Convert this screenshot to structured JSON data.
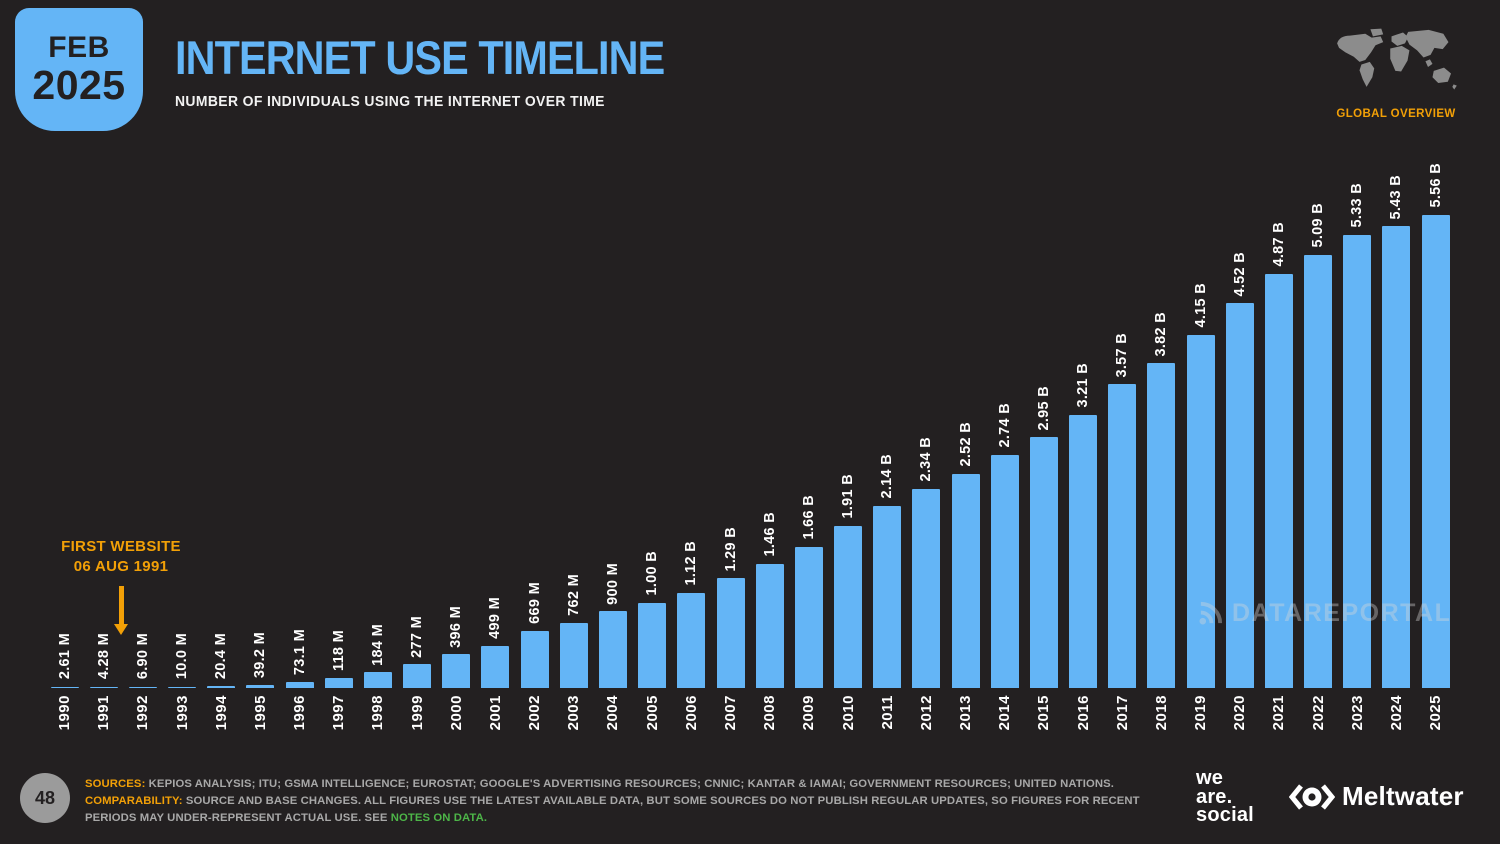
{
  "header": {
    "badge_month": "FEB",
    "badge_year": "2025",
    "title": "INTERNET USE TIMELINE",
    "subtitle": "NUMBER OF INDIVIDUALS USING THE INTERNET OVER TIME",
    "region_label": "GLOBAL OVERVIEW"
  },
  "chart_data": {
    "type": "bar",
    "title": "INTERNET USE TIMELINE",
    "subtitle": "NUMBER OF INDIVIDUALS USING THE INTERNET OVER TIME",
    "categories": [
      "1990",
      "1991",
      "1992",
      "1993",
      "1994",
      "1995",
      "1996",
      "1997",
      "1998",
      "1999",
      "2000",
      "2001",
      "2002",
      "2003",
      "2004",
      "2005",
      "2006",
      "2007",
      "2008",
      "2009",
      "2010",
      "2011",
      "2012",
      "2013",
      "2014",
      "2015",
      "2016",
      "2017",
      "2018",
      "2019",
      "2020",
      "2021",
      "2022",
      "2023",
      "2024",
      "2025"
    ],
    "value_labels": [
      "2.61 M",
      "4.28 M",
      "6.90 M",
      "10.0 M",
      "20.4 M",
      "39.2 M",
      "73.1 M",
      "118 M",
      "184 M",
      "277 M",
      "396 M",
      "499 M",
      "669 M",
      "762 M",
      "900 M",
      "1.00 B",
      "1.12 B",
      "1.29 B",
      "1.46 B",
      "1.66 B",
      "1.91 B",
      "2.14 B",
      "2.34 B",
      "2.52 B",
      "2.74 B",
      "2.95 B",
      "3.21 B",
      "3.57 B",
      "3.82 B",
      "4.15 B",
      "4.52 B",
      "4.87 B",
      "5.09 B",
      "5.33 B",
      "5.43 B",
      "5.56 B"
    ],
    "values_billions": [
      0.00261,
      0.00428,
      0.0069,
      0.01,
      0.0204,
      0.0392,
      0.0731,
      0.118,
      0.184,
      0.277,
      0.396,
      0.499,
      0.669,
      0.762,
      0.9,
      1.0,
      1.12,
      1.29,
      1.46,
      1.66,
      1.91,
      2.14,
      2.34,
      2.52,
      2.74,
      2.95,
      3.21,
      3.57,
      3.82,
      4.15,
      4.52,
      4.87,
      5.09,
      5.33,
      5.43,
      5.56
    ],
    "ylim_billions": [
      0,
      5.56
    ],
    "bar_color": "#64b5f6",
    "grid": false,
    "legend": "none",
    "value_label_rotation_deg": 90,
    "category_label_rotation_deg": 90,
    "annotation": {
      "line1": "FIRST WEBSITE",
      "line2": "06 AUG 1991",
      "points_at_year": "1992"
    }
  },
  "watermark": {
    "label": "DATAREPORTAL"
  },
  "footer": {
    "page_number": "48",
    "sources_label": "SOURCES:",
    "sources_text": " KEPIOS ANALYSIS; ITU; GSMA INTELLIGENCE; EUROSTAT; GOOGLE'S ADVERTISING RESOURCES; CNNIC; KANTAR & IAMAI; GOVERNMENT RESOURCES; UNITED NATIONS. ",
    "comparability_label": "COMPARABILITY:",
    "comparability_text": " SOURCE AND BASE CHANGES. ALL FIGURES USE THE LATEST AVAILABLE DATA, BUT SOME SOURCES DO NOT PUBLISH REGULAR UPDATES, SO FIGURES FOR RECENT PERIODS MAY UNDER-REPRESENT ACTUAL USE. SEE ",
    "notes_link": "NOTES ON DATA.",
    "brand_we_are_social": [
      "we",
      "are.",
      "social"
    ],
    "brand_meltwater": "Meltwater"
  },
  "colors": {
    "background": "#232021",
    "accent_blue": "#64b5f6",
    "accent_orange": "#f2a007",
    "bar_blue": "#64b5f6",
    "footer_gray": "#a8a8a8",
    "link_green": "#4db548",
    "map_gray": "#8c8c8c"
  }
}
